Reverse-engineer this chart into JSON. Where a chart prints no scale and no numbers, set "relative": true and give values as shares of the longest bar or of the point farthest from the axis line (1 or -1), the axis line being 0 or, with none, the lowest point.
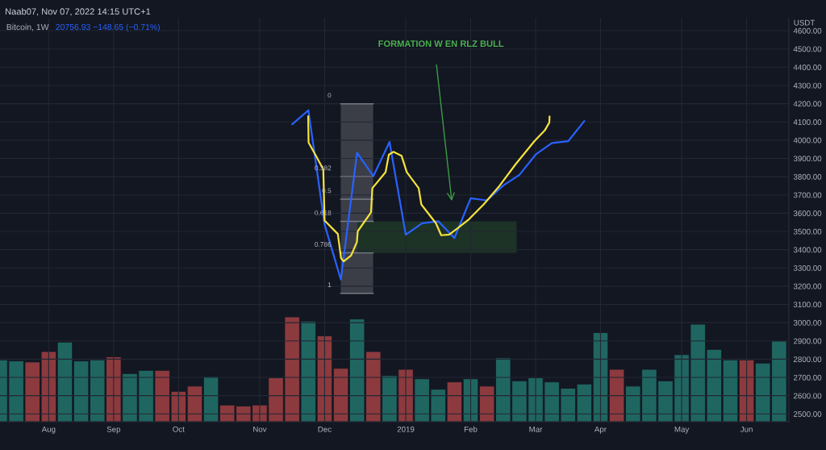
{
  "chart_data": [
    {
      "type": "line",
      "title": "Bitcoin, 1W",
      "ylabel": "USDT",
      "annotations": [
        "Naab07, Nov 07, 2022 14:15 UTC+1",
        "20756.93 −148.65 (−0.71%)",
        "FORMATION W EN RLZ BULL",
        "0",
        "0.382",
        "0.5",
        "0.618",
        "0.786",
        "1"
      ],
      "series": [
        {
          "color": "#2962ff",
          "x": [
            "2018-11-19",
            "2018-11-26",
            "2018-12-03",
            "2018-12-10",
            "2018-12-17",
            "2018-12-24",
            "2018-12-31",
            "2019-01-07",
            "2019-01-14",
            "2019-01-21",
            "2019-01-28",
            "2019-02-04",
            "2019-02-11",
            "2019-02-18",
            "2019-02-25",
            "2019-03-04",
            "2019-03-11",
            "2019-03-18",
            "2019-03-25"
          ],
          "values": [
            4087,
            4164,
            3538,
            3236,
            3931,
            3803,
            3990,
            3482,
            3545,
            3556,
            3464,
            3682,
            3670,
            3751,
            3810,
            3921,
            3984,
            3994,
            4105
          ]
        },
        {
          "type": "line",
          "color": "#f5e23c",
          "x": [
            "2018-11-25T22:00",
            "2018-11-26T02:00",
            "2018-11-29T00:00",
            "2018-12-02T10:00",
            "2018-12-03T00:00",
            "2018-12-08T17:00",
            "2018-12-10T02:00",
            "2018-12-11T05:00",
            "2018-12-14T10:00",
            "2018-12-16T22:00",
            "2018-12-17T07:00",
            "2018-12-23T00:00",
            "2018-12-23T14:00",
            "2018-12-29T07:00",
            "2018-12-30T17:00",
            "2019-01-01T17:00",
            "2019-01-05T05:00",
            "2019-01-07T10:00",
            "2019-01-12T14:00",
            "2019-01-13T17:00",
            "2019-01-20T00:00",
            "2019-01-22T07:00",
            "2019-01-25T17:00",
            "2019-01-29T05:00",
            "2019-02-03T07:00",
            "2019-02-09T14:00",
            "2019-02-16T12:00",
            "2019-02-23T10:00",
            "2019-03-03T10:00",
            "2019-03-07T22:00",
            "2019-03-09T22:00",
            "2019-03-10T00:00"
          ],
          "values": [
            4131,
            3987,
            3921,
            3840,
            3560,
            3486,
            3354,
            3336,
            3368,
            3442,
            3501,
            3604,
            3737,
            3825,
            3921,
            3936,
            3914,
            3825,
            3737,
            3648,
            3545,
            3479,
            3483,
            3516,
            3567,
            3648,
            3751,
            3869,
            3994,
            4053,
            4097,
            4130
          ]
        }
      ],
      "xlim": [
        "2018-07-16",
        "2019-06-21T05:00"
      ],
      "xticks": [
        {
          "value": "2018-08-06",
          "label": "Aug"
        },
        {
          "value": "2018-09-03",
          "label": "Sep"
        },
        {
          "value": "2018-10-01",
          "label": "Oct"
        },
        {
          "value": "2018-11-05",
          "label": "Nov"
        },
        {
          "value": "2018-12-03",
          "label": "Dec"
        },
        {
          "value": "2019-01-07",
          "label": "2019"
        },
        {
          "value": "2019-02-04",
          "label": "Feb"
        },
        {
          "value": "2019-03-04",
          "label": "Mar"
        },
        {
          "value": "2019-04-01",
          "label": "Apr"
        },
        {
          "value": "2019-05-06",
          "label": "May"
        },
        {
          "value": "2019-06-03",
          "label": "Jun"
        }
      ],
      "ylim": [
        2457,
        4671
      ],
      "yticks": [
        {
          "value": 2500,
          "label": "2500.00"
        },
        {
          "value": 2600,
          "label": "2600.00"
        },
        {
          "value": 2700,
          "label": "2700.00"
        },
        {
          "value": 2800,
          "label": "2800.00"
        },
        {
          "value": 2900,
          "label": "2900.00"
        },
        {
          "value": 3000,
          "label": "3000.00"
        },
        {
          "value": 3100,
          "label": "3100.00"
        },
        {
          "value": 3200,
          "label": "3200.00"
        },
        {
          "value": 3300,
          "label": "3300.00"
        },
        {
          "value": 3400,
          "label": "3400.00"
        },
        {
          "value": 3500,
          "label": "3500.00"
        },
        {
          "value": 3600,
          "label": "3600.00"
        },
        {
          "value": 3700,
          "label": "3700.00"
        },
        {
          "value": 3800,
          "label": "3800.00"
        },
        {
          "value": 3900,
          "label": "3900.00"
        },
        {
          "value": 4000,
          "label": "4000.00"
        },
        {
          "value": 4100,
          "label": "4100.00"
        },
        {
          "value": 4200,
          "label": "4200.00"
        },
        {
          "value": 4300,
          "label": "4300.00"
        },
        {
          "value": 4400,
          "label": "4400.00"
        },
        {
          "value": 4500,
          "label": "4500.00"
        },
        {
          "value": 4600,
          "label": "4600.00"
        }
      ],
      "grid": true,
      "marker": "none",
      "line_style": "solid"
    },
    {
      "type": "bar",
      "relative": true,
      "tick_labels": false,
      "x": [
        "2018-07-16",
        "2018-07-23",
        "2018-07-30",
        "2018-08-06",
        "2018-08-13",
        "2018-08-20",
        "2018-08-27",
        "2018-09-03",
        "2018-09-10",
        "2018-09-17",
        "2018-09-24",
        "2018-10-01",
        "2018-10-08",
        "2018-10-15",
        "2018-10-22",
        "2018-10-29",
        "2018-11-05",
        "2018-11-12",
        "2018-11-19",
        "2018-11-26",
        "2018-12-03",
        "2018-12-10",
        "2018-12-17",
        "2018-12-24",
        "2018-12-31",
        "2019-01-07",
        "2019-01-14",
        "2019-01-21",
        "2019-01-28",
        "2019-02-04",
        "2019-02-11",
        "2019-02-18",
        "2019-02-25",
        "2019-03-04",
        "2019-03-11",
        "2019-03-18",
        "2019-03-25",
        "2019-04-01",
        "2019-04-08",
        "2019-04-15",
        "2019-04-22",
        "2019-04-29",
        "2019-05-06",
        "2019-05-13",
        "2019-05-20",
        "2019-05-27",
        "2019-06-03",
        "2019-06-10",
        "2019-06-17"
      ],
      "values": [
        0.59,
        0.58,
        0.57,
        0.67,
        0.76,
        0.58,
        0.59,
        0.62,
        0.46,
        0.49,
        0.49,
        0.29,
        0.34,
        0.43,
        0.16,
        0.15,
        0.16,
        0.42,
        1,
        0.96,
        0.82,
        0.51,
        0.98,
        0.67,
        0.44,
        0.5,
        0.41,
        0.31,
        0.38,
        0.41,
        0.34,
        0.61,
        0.39,
        0.42,
        0.38,
        0.32,
        0.36,
        0.85,
        0.5,
        0.34,
        0.5,
        0.39,
        0.64,
        0.93,
        0.69,
        0.59,
        0.59,
        0.56,
        0.77
      ],
      "colors": [
        "#1f6661",
        "#1f6661",
        "#8c3a3e",
        "#8c3a3e",
        "#1f6661",
        "#1f6661",
        "#1f6661",
        "#8c3a3e",
        "#1f6661",
        "#1f6661",
        "#8c3a3e",
        "#8c3a3e",
        "#8c3a3e",
        "#1f6661",
        "#8c3a3e",
        "#8c3a3e",
        "#8c3a3e",
        "#8c3a3e",
        "#8c3a3e",
        "#1f6661",
        "#8c3a3e",
        "#8c3a3e",
        "#1f6661",
        "#8c3a3e",
        "#1f6661",
        "#8c3a3e",
        "#1f6661",
        "#1f6661",
        "#8c3a3e",
        "#1f6661",
        "#8c3a3e",
        "#1f6661",
        "#1f6661",
        "#1f6661",
        "#1f6661",
        "#1f6661",
        "#1f6661",
        "#1f6661",
        "#8c3a3e",
        "#1f6661",
        "#1f6661",
        "#1f6661",
        "#1f6661",
        "#1f6661",
        "#1f6661",
        "#1f6661",
        "#8c3a3e",
        "#1f6661",
        "#1f6661"
      ],
      "xlim": [
        "2018-07-16",
        "2019-06-21T05:00"
      ]
    }
  ]
}
